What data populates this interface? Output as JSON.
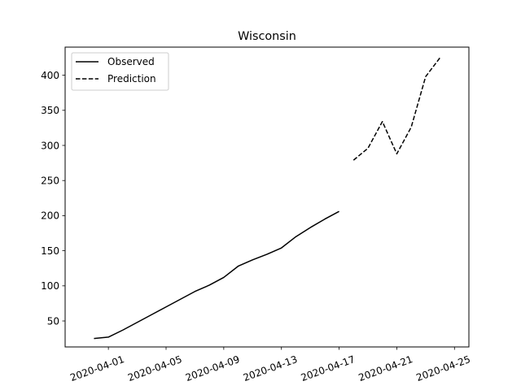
{
  "chart_data": {
    "type": "line",
    "title": "Wisconsin",
    "xlabel": "",
    "ylabel": "",
    "x_type": "date",
    "xlim": [
      "2020-03-29",
      "2020-04-26"
    ],
    "ylim": [
      13,
      440
    ],
    "x_ticks": [
      "2020-04-01",
      "2020-04-05",
      "2020-04-09",
      "2020-04-13",
      "2020-04-17",
      "2020-04-21",
      "2020-04-25"
    ],
    "y_ticks": [
      50,
      100,
      150,
      200,
      250,
      300,
      350,
      400
    ],
    "grid": false,
    "legend": {
      "position": "top-left",
      "entries": [
        "Observed",
        "Prediction"
      ]
    },
    "series": [
      {
        "name": "Observed",
        "style": "solid",
        "color": "#000000",
        "x": [
          "2020-03-31",
          "2020-04-01",
          "2020-04-02",
          "2020-04-03",
          "2020-04-04",
          "2020-04-05",
          "2020-04-06",
          "2020-04-07",
          "2020-04-08",
          "2020-04-09",
          "2020-04-10",
          "2020-04-11",
          "2020-04-12",
          "2020-04-13",
          "2020-04-14",
          "2020-04-15",
          "2020-04-16",
          "2020-04-17"
        ],
        "y": [
          25,
          27,
          37,
          48,
          59,
          70,
          81,
          92,
          101,
          112,
          128,
          137,
          145,
          154,
          170,
          183,
          195,
          206
        ]
      },
      {
        "name": "Prediction",
        "style": "dashed",
        "color": "#000000",
        "x": [
          "2020-04-18",
          "2020-04-19",
          "2020-04-20",
          "2020-04-21",
          "2020-04-22",
          "2020-04-23",
          "2020-04-24"
        ],
        "y": [
          279,
          296,
          334,
          288,
          326,
          398,
          425
        ]
      }
    ]
  }
}
